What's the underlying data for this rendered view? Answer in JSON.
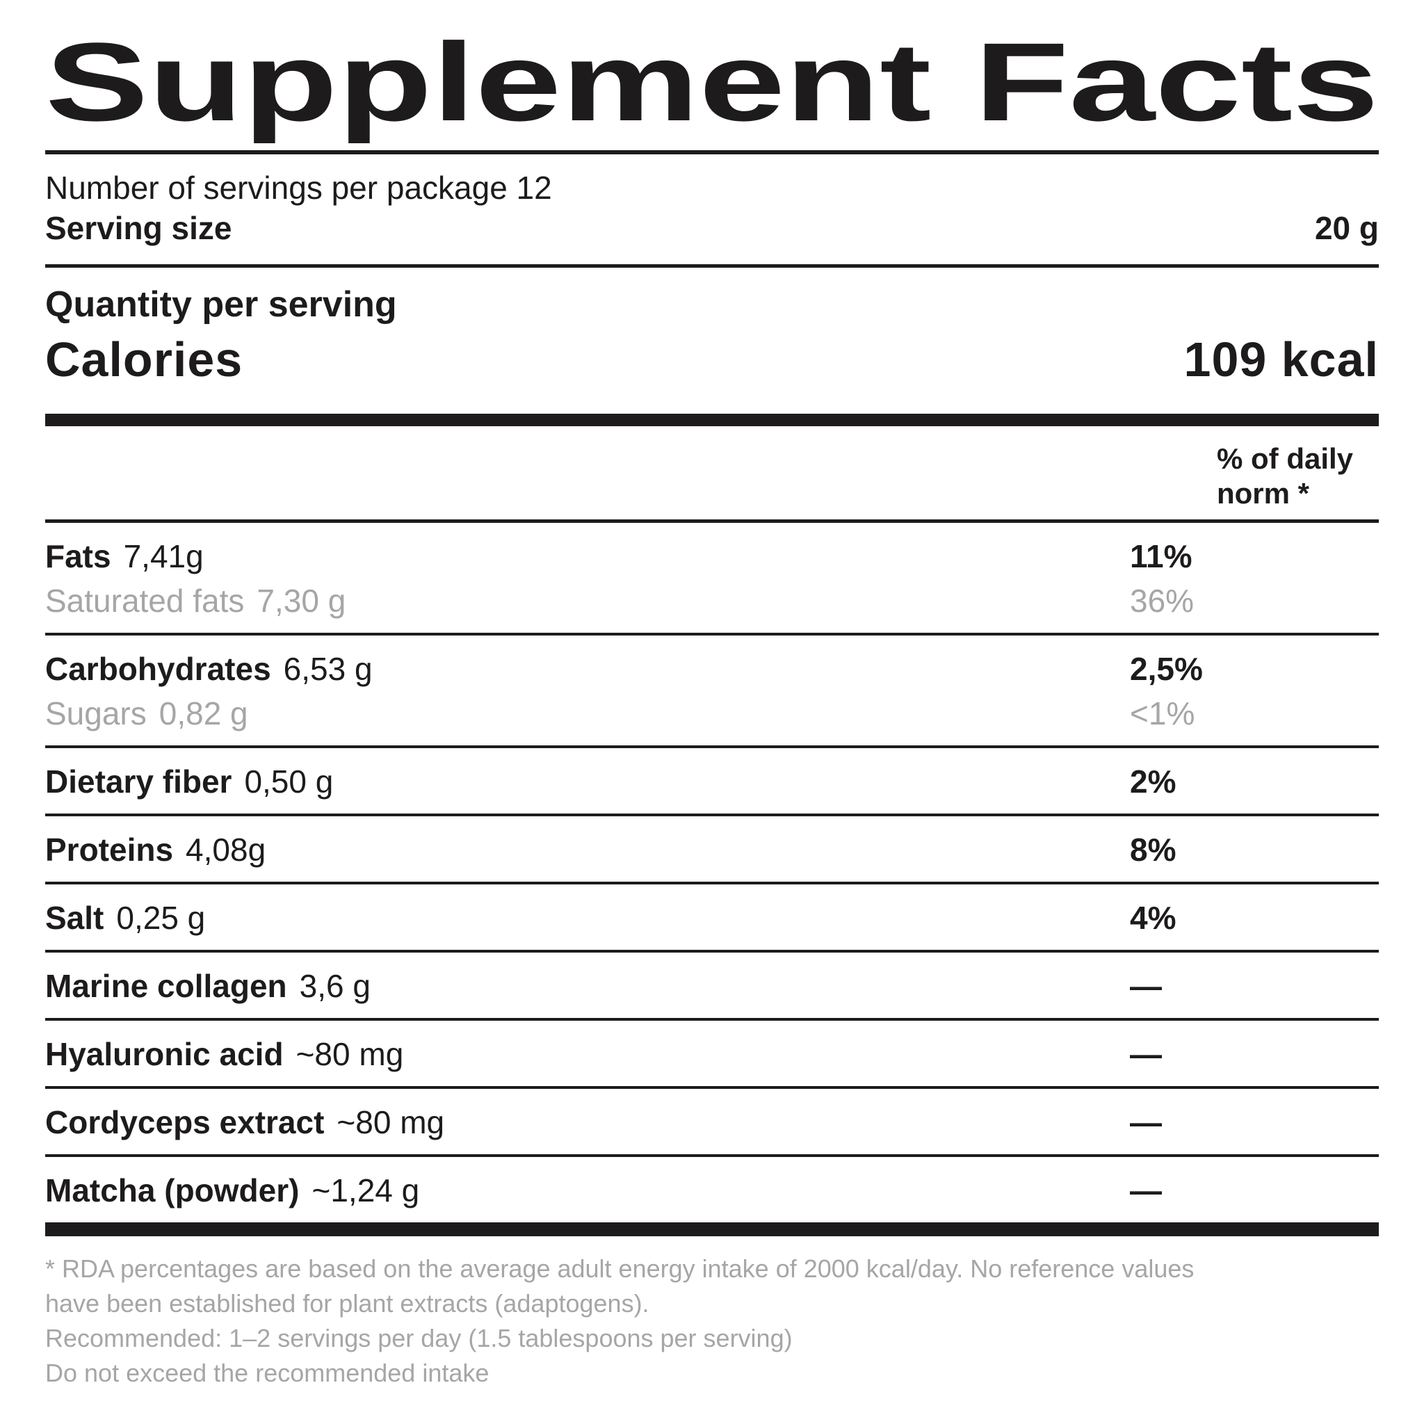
{
  "title": "Supplement Facts",
  "package_info": {
    "servings_line": "Number of servings per package 12",
    "serving_size_label": "Serving size",
    "serving_size_value": "20 g"
  },
  "quantity_header": "Quantity per serving",
  "calories": {
    "label": "Calories",
    "value": "109 kcal"
  },
  "daily_norm_header": "% of daily\nnorm *",
  "rows": [
    {
      "name": "Fats",
      "amount": "7,41g",
      "percent": "11%",
      "sub": {
        "name": "Saturated fats",
        "amount": "7,30 g",
        "percent": "36%"
      }
    },
    {
      "name": "Carbohydrates",
      "amount": "6,53 g",
      "percent": "2,5%",
      "sub": {
        "name": "Sugars",
        "amount": "0,82 g",
        "percent": "<1%"
      }
    },
    {
      "name": "Dietary fiber",
      "amount": "0,50 g",
      "percent": "2%"
    },
    {
      "name": "Proteins",
      "amount": "4,08g",
      "percent": "8%"
    },
    {
      "name": "Salt",
      "amount": "0,25 g",
      "percent": "4%"
    },
    {
      "name": "Marine collagen",
      "amount": "3,6 g",
      "percent": "—"
    },
    {
      "name": "Hyaluronic acid",
      "amount": "~80 mg",
      "percent": "—"
    },
    {
      "name": "Cordyceps extract",
      "amount": "~80 mg",
      "percent": "—"
    },
    {
      "name": "Matcha (powder)",
      "amount": "~1,24 g",
      "percent": "—"
    }
  ],
  "footnotes": {
    "rda": "* RDA percentages are based on the average adult energy intake of 2000 kcal/day. No reference values\nhave been established for plant extracts (adaptogens).",
    "recommended": "Recommended: 1–2 servings per day (1.5 tablespoons per serving)",
    "warning": "Do not exceed the recommended intake"
  },
  "colors": {
    "text": "#1d1b1c",
    "muted": "#a7a5a6",
    "background": "#ffffff"
  }
}
